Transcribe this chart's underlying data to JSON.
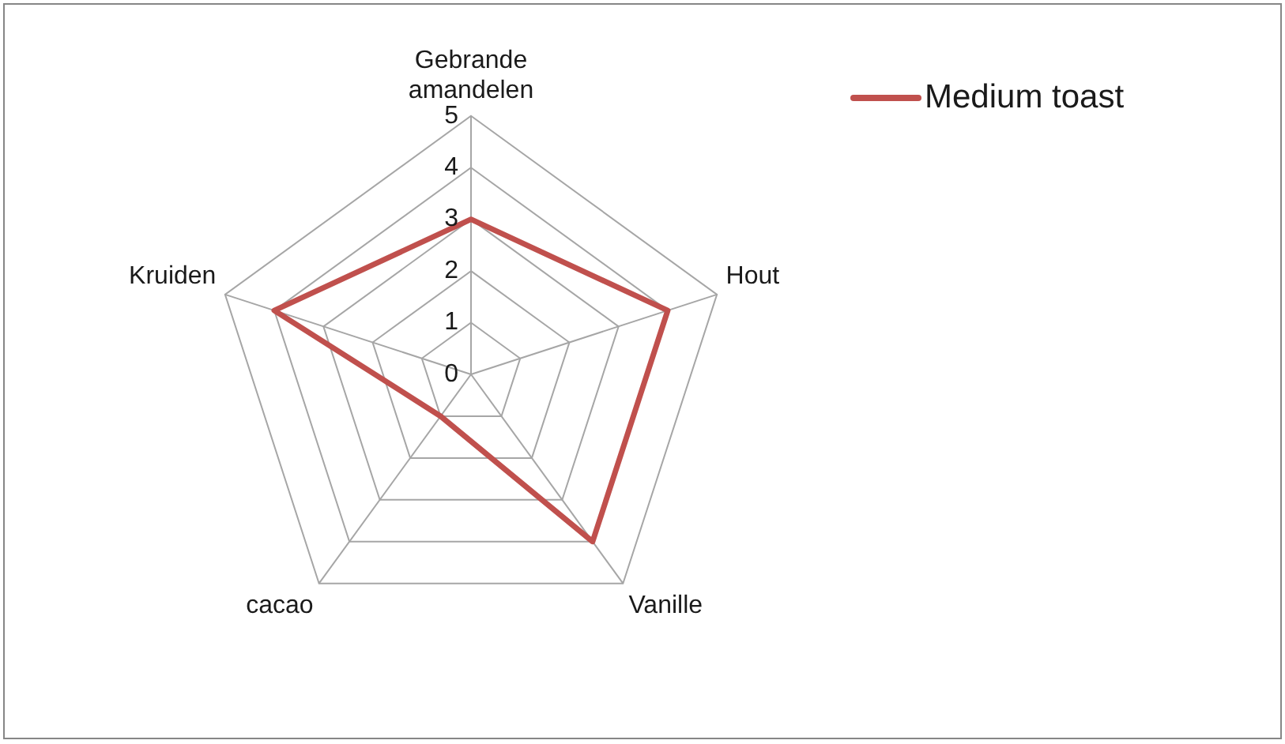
{
  "chart_data": {
    "type": "radar",
    "categories": [
      "Gebrande amandelen",
      "Hout",
      "Vanille",
      "cacao",
      "Kruiden"
    ],
    "series": [
      {
        "name": "Medium toast",
        "color": "#c0504d",
        "values": [
          3,
          4,
          4,
          1,
          4
        ]
      }
    ],
    "ylim": [
      0,
      5
    ],
    "yticks": [
      0,
      1,
      2,
      3,
      4,
      5
    ],
    "grid": true,
    "legend": "top right",
    "marker": "none"
  }
}
